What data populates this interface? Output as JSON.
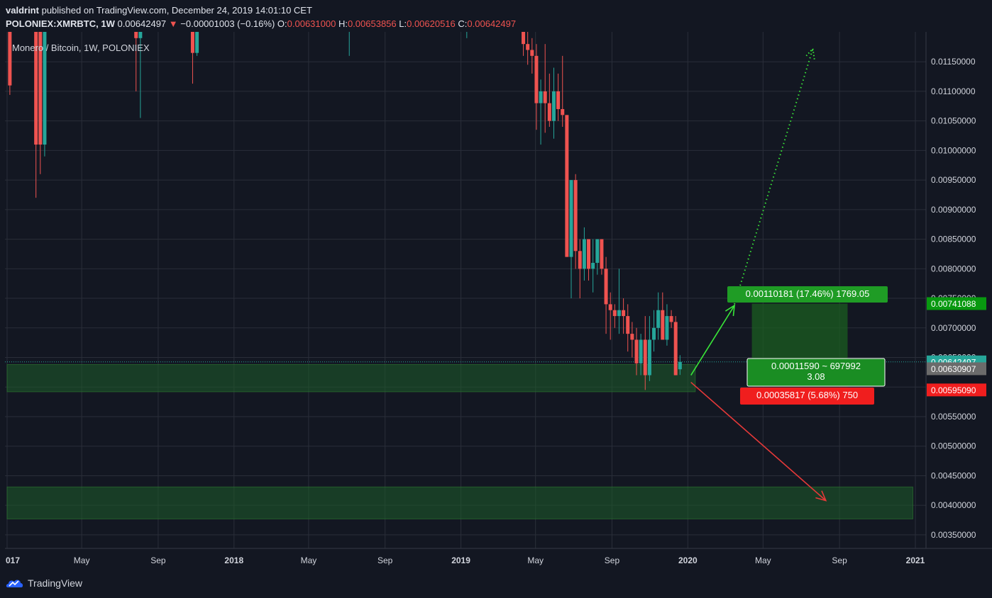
{
  "header": {
    "author": "valdrint",
    "published_text": "published on TradingView.com, December 24, 2019 14:01:10 CET",
    "symbol": "POLONIEX:XMRBTC, 1W",
    "last": "0.00642497",
    "change": "−0.00001003 (−0.16%)",
    "o_label": "O:",
    "o": "0.00631000",
    "h_label": "H:",
    "h": "0.00653856",
    "l_label": "L:",
    "l": "0.00620516",
    "c_label": "C:",
    "c": "0.00642497"
  },
  "colors": {
    "background": "#131722",
    "grid": "#2a2e39",
    "up": "#26a69a",
    "down": "#ef5350",
    "zone": "#1e5c2a",
    "target": "#089981",
    "target_label": "#1f9c25",
    "stop_label": "#f01e1e",
    "arrow_up": "#39e639",
    "arrow_down": "#e63939"
  },
  "chart_data": {
    "type": "candlestick",
    "title": "Monero / Bitcoin, 1W, POLONIEX",
    "x_axis": {
      "tick_labels": [
        "017",
        "May",
        "Sep",
        "2018",
        "May",
        "Sep",
        "2019",
        "May",
        "Sep",
        "2020",
        "May",
        "Sep",
        "2021"
      ],
      "range": [
        "2017-01",
        "2021-01"
      ]
    },
    "y_axis": {
      "range": [
        0.0032,
        0.0119
      ],
      "tick_labels": [
        "0.01150000",
        "0.01100000",
        "0.01050000",
        "0.01000000",
        "0.00950000",
        "0.00900000",
        "0.00850000",
        "0.00800000",
        "0.00750000",
        "0.00700000",
        "0.00650000",
        "0.00600000",
        "0.00550000",
        "0.00500000",
        "0.00450000",
        "0.00400000",
        "0.00350000"
      ]
    },
    "price_labels": [
      {
        "value": 0.00741088,
        "text": "0.00741088",
        "kind": "target"
      },
      {
        "value": 0.00642497,
        "text": "0.00642497",
        "kind": "last"
      },
      {
        "value": 0.00630907,
        "text": "0.00630907",
        "kind": "entry"
      },
      {
        "value": 0.0059509,
        "text": "0.00595090",
        "kind": "stop"
      }
    ],
    "candles": [
      {
        "date": "2017-01-02",
        "o": 0.0125,
        "h": 0.013,
        "l": 0.01094,
        "c": 0.0111
      },
      {
        "date": "2017-02-13",
        "o": 0.0125,
        "h": 0.0125,
        "l": 0.0092,
        "c": 0.0101
      },
      {
        "date": "2017-02-20",
        "o": 0.0125,
        "h": 0.0125,
        "l": 0.0096,
        "c": 0.0101
      },
      {
        "date": "2017-02-27",
        "o": 0.0101,
        "h": 0.0125,
        "l": 0.0099,
        "c": 0.0125
      },
      {
        "date": "2017-07-24",
        "o": 0.0125,
        "h": 0.0125,
        "l": 0.011,
        "c": 0.0119
      },
      {
        "date": "2017-07-31",
        "o": 0.0119,
        "h": 0.0125,
        "l": 0.01055,
        "c": 0.0125
      },
      {
        "date": "2017-10-23",
        "o": 0.0125,
        "h": 0.0125,
        "l": 0.01113,
        "c": 0.01165
      },
      {
        "date": "2017-10-30",
        "o": 0.01165,
        "h": 0.0125,
        "l": 0.0116,
        "c": 0.0125
      },
      {
        "date": "2018-07-02",
        "o": 0.0125,
        "h": 0.0125,
        "l": 0.0116,
        "c": 0.0125
      },
      {
        "date": "2019-01-07",
        "o": 0.0125,
        "h": 0.0125,
        "l": 0.0119,
        "c": 0.0125
      },
      {
        "date": "2019-04-08",
        "o": 0.0125,
        "h": 0.0125,
        "l": 0.0116,
        "c": 0.0118
      },
      {
        "date": "2019-04-15",
        "o": 0.0118,
        "h": 0.0125,
        "l": 0.01145,
        "c": 0.0117
      },
      {
        "date": "2019-04-22",
        "o": 0.0117,
        "h": 0.0119,
        "l": 0.0113,
        "c": 0.0116
      },
      {
        "date": "2019-04-29",
        "o": 0.0116,
        "h": 0.0118,
        "l": 0.01035,
        "c": 0.0108
      },
      {
        "date": "2019-05-06",
        "o": 0.0108,
        "h": 0.0112,
        "l": 0.0101,
        "c": 0.011
      },
      {
        "date": "2019-05-13",
        "o": 0.011,
        "h": 0.0118,
        "l": 0.0103,
        "c": 0.0108
      },
      {
        "date": "2019-05-20",
        "o": 0.0108,
        "h": 0.0113,
        "l": 0.0104,
        "c": 0.0105
      },
      {
        "date": "2019-05-27",
        "o": 0.0105,
        "h": 0.0114,
        "l": 0.0102,
        "c": 0.011
      },
      {
        "date": "2019-06-03",
        "o": 0.011,
        "h": 0.0113,
        "l": 0.0105,
        "c": 0.0107
      },
      {
        "date": "2019-06-10",
        "o": 0.0107,
        "h": 0.0116,
        "l": 0.0104,
        "c": 0.0106
      },
      {
        "date": "2019-06-17",
        "o": 0.0106,
        "h": 0.0106,
        "l": 0.0082,
        "c": 0.0082
      },
      {
        "date": "2019-06-24",
        "o": 0.0082,
        "h": 0.0095,
        "l": 0.0075,
        "c": 0.0095
      },
      {
        "date": "2019-07-01",
        "o": 0.0095,
        "h": 0.0096,
        "l": 0.008,
        "c": 0.0083
      },
      {
        "date": "2019-07-08",
        "o": 0.0083,
        "h": 0.0085,
        "l": 0.0075,
        "c": 0.008
      },
      {
        "date": "2019-07-15",
        "o": 0.008,
        "h": 0.0087,
        "l": 0.0078,
        "c": 0.0085
      },
      {
        "date": "2019-07-22",
        "o": 0.0085,
        "h": 0.0085,
        "l": 0.0078,
        "c": 0.008
      },
      {
        "date": "2019-07-29",
        "o": 0.008,
        "h": 0.0085,
        "l": 0.0076,
        "c": 0.0081
      },
      {
        "date": "2019-08-05",
        "o": 0.0081,
        "h": 0.0085,
        "l": 0.0079,
        "c": 0.0085
      },
      {
        "date": "2019-08-12",
        "o": 0.0085,
        "h": 0.0085,
        "l": 0.0079,
        "c": 0.008
      },
      {
        "date": "2019-08-19",
        "o": 0.008,
        "h": 0.0082,
        "l": 0.0069,
        "c": 0.0074
      },
      {
        "date": "2019-08-26",
        "o": 0.0074,
        "h": 0.0076,
        "l": 0.0068,
        "c": 0.0073
      },
      {
        "date": "2019-09-02",
        "o": 0.0073,
        "h": 0.0074,
        "l": 0.007,
        "c": 0.0072
      },
      {
        "date": "2019-09-09",
        "o": 0.0072,
        "h": 0.008,
        "l": 0.0069,
        "c": 0.0073
      },
      {
        "date": "2019-09-16",
        "o": 0.0073,
        "h": 0.0075,
        "l": 0.0069,
        "c": 0.0072
      },
      {
        "date": "2019-09-23",
        "o": 0.0072,
        "h": 0.0074,
        "l": 0.0066,
        "c": 0.0069
      },
      {
        "date": "2019-09-30",
        "o": 0.0069,
        "h": 0.0071,
        "l": 0.0065,
        "c": 0.0068
      },
      {
        "date": "2019-10-07",
        "o": 0.0068,
        "h": 0.007,
        "l": 0.0062,
        "c": 0.0064
      },
      {
        "date": "2019-10-14",
        "o": 0.0064,
        "h": 0.0069,
        "l": 0.0062,
        "c": 0.0068
      },
      {
        "date": "2019-10-21",
        "o": 0.0068,
        "h": 0.0072,
        "l": 0.00595,
        "c": 0.0062
      },
      {
        "date": "2019-10-28",
        "o": 0.0062,
        "h": 0.0072,
        "l": 0.0061,
        "c": 0.0068
      },
      {
        "date": "2019-11-04",
        "o": 0.0068,
        "h": 0.0073,
        "l": 0.0066,
        "c": 0.007
      },
      {
        "date": "2019-11-11",
        "o": 0.007,
        "h": 0.0076,
        "l": 0.0068,
        "c": 0.0073
      },
      {
        "date": "2019-11-18",
        "o": 0.0073,
        "h": 0.0076,
        "l": 0.0068,
        "c": 0.0068
      },
      {
        "date": "2019-11-25",
        "o": 0.0068,
        "h": 0.0074,
        "l": 0.0067,
        "c": 0.0072
      },
      {
        "date": "2019-12-02",
        "o": 0.0072,
        "h": 0.0073,
        "l": 0.007,
        "c": 0.0071
      },
      {
        "date": "2019-12-09",
        "o": 0.0071,
        "h": 0.0072,
        "l": 0.0062,
        "c": 0.0062
      },
      {
        "date": "2019-12-16",
        "o": 0.0063,
        "h": 0.00653856,
        "l": 0.00620516,
        "c": 0.00642497
      }
    ],
    "zones": [
      {
        "from_date": "2017-01-01",
        "to_date": "2020-01-13",
        "y_low": 0.00592,
        "y_high": 0.00638
      },
      {
        "from_date": "2017-01-01",
        "to_date": "2020-12-28",
        "y_low": 0.00377,
        "y_high": 0.00431
      }
    ],
    "position": {
      "entry": 0.00630907,
      "target": 0.00741088,
      "stop": 0.0059509,
      "from_date": "2020-04-13",
      "to_date": "2020-09-14",
      "target_label": "0.00110181 (17.46%) 1769.05",
      "ratio_line1": "0.00011590 ~ 697992",
      "ratio_line2": "3.08",
      "stop_label": "0.00035817 (5.68%) 750"
    },
    "arrows": [
      {
        "kind": "solid-up",
        "from": {
          "date": "2020-01-06",
          "y": 0.0062
        },
        "to": {
          "date": "2020-03-16",
          "y": 0.00738
        }
      },
      {
        "kind": "dotted-up",
        "from": {
          "date": "2020-03-16",
          "y": 0.0074
        },
        "to": {
          "date": "2020-07-20",
          "y": 0.01172
        }
      },
      {
        "kind": "solid-down",
        "from": {
          "date": "2020-01-06",
          "y": 0.00608
        },
        "to": {
          "date": "2020-08-10",
          "y": 0.00408
        }
      }
    ],
    "grid": true
  },
  "footer": {
    "brand": "TradingView",
    "logo_icon": "tradingview-cloud-icon"
  }
}
